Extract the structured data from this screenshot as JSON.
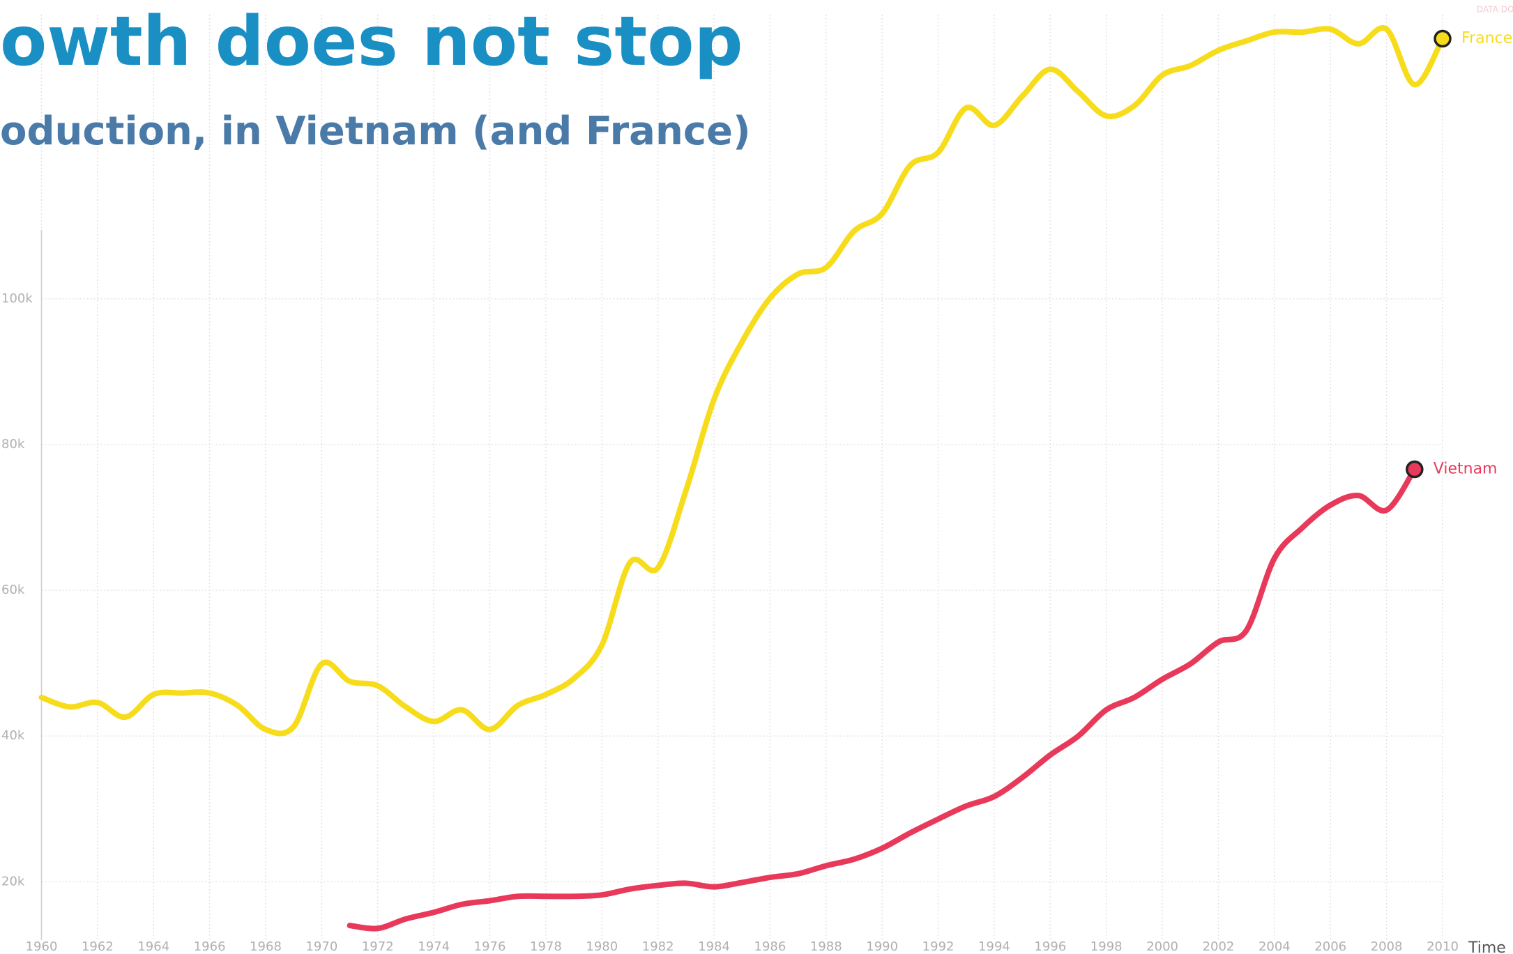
{
  "chart_data": {
    "type": "line",
    "title": "owth does not stop",
    "subtitle": "oduction, in Vietnam (and France)",
    "x_label": "Time",
    "note": "DATA DOUBTS",
    "x": [
      1960,
      1961,
      1962,
      1963,
      1964,
      1965,
      1966,
      1967,
      1968,
      1969,
      1970,
      1971,
      1972,
      1973,
      1974,
      1975,
      1976,
      1977,
      1978,
      1979,
      1980,
      1981,
      1982,
      1983,
      1984,
      1985,
      1986,
      1987,
      1988,
      1989,
      1990,
      1991,
      1992,
      1993,
      1994,
      1995,
      1996,
      1997,
      1998,
      1999,
      2000,
      2001,
      2002,
      2003,
      2004,
      2005,
      2006,
      2007,
      2008,
      2009,
      2010
    ],
    "series": [
      {
        "name": "France",
        "color": "#f7dc1c",
        "values": [
          45300,
          44000,
          44600,
          42600,
          45700,
          45900,
          45900,
          44200,
          40900,
          41300,
          49900,
          47500,
          46900,
          44000,
          42000,
          43600,
          40900,
          44200,
          45700,
          47900,
          52500,
          63800,
          63100,
          73700,
          86200,
          94100,
          100100,
          103400,
          104300,
          109300,
          111700,
          118300,
          120100,
          126200,
          123800,
          127800,
          131500,
          128400,
          125100,
          126500,
          130700,
          132000,
          134100,
          135400,
          136600,
          136600,
          137000,
          135000,
          137000,
          129400,
          135700
        ]
      },
      {
        "name": "Vietnam",
        "color": "#e8395a",
        "values": [
          null,
          null,
          null,
          null,
          null,
          null,
          null,
          null,
          null,
          null,
          null,
          14000,
          13600,
          14900,
          15800,
          16900,
          17400,
          18000,
          18000,
          18000,
          18200,
          19000,
          19500,
          19800,
          19300,
          19900,
          20600,
          21100,
          22200,
          23100,
          24600,
          26700,
          28600,
          30400,
          31700,
          34300,
          37400,
          40000,
          43600,
          45300,
          47800,
          49900,
          52900,
          54500,
          64400,
          68600,
          71700,
          73000,
          71000,
          76600,
          null
        ]
      }
    ],
    "xlim": [
      1960,
      2010
    ],
    "xticks": [
      1960,
      1962,
      1964,
      1966,
      1968,
      1970,
      1972,
      1974,
      1976,
      1978,
      1980,
      1982,
      1984,
      1986,
      1988,
      1990,
      1992,
      1994,
      1996,
      1998,
      2000,
      2002,
      2004,
      2006,
      2008,
      2010
    ],
    "ylim": [
      12000,
      139000
    ],
    "yticks": [
      {
        "value": 20000,
        "label": "20k"
      },
      {
        "value": 40000,
        "label": "40k"
      },
      {
        "value": 60000,
        "label": "60k"
      },
      {
        "value": 80000,
        "label": "80k"
      },
      {
        "value": 100000,
        "label": "100k"
      }
    ],
    "grid": true
  }
}
